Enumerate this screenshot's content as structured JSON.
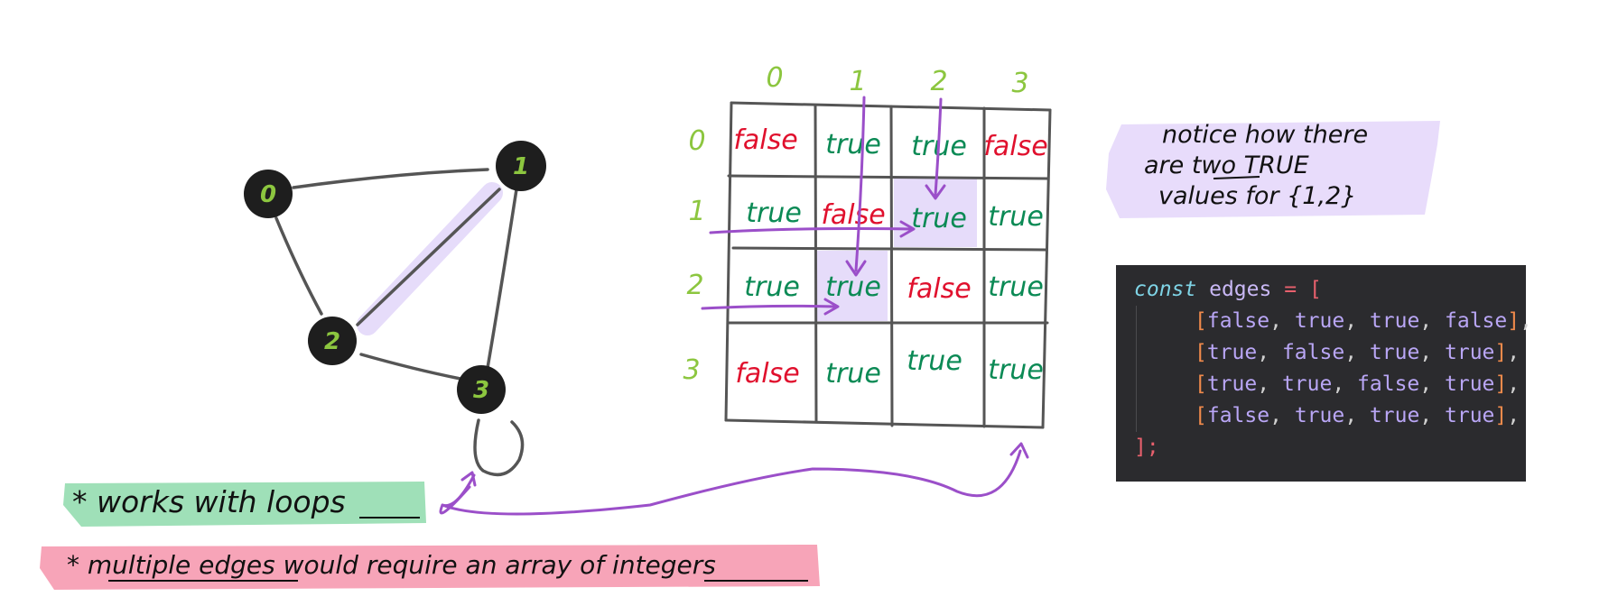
{
  "colors": {
    "node_fill": "#1e1e1e",
    "node_label": "#8cc63f",
    "edge": "#555555",
    "highlight": "#e6dcfa",
    "true_text": "#0b8a55",
    "false_text": "#e0102d",
    "index_label": "#8cc63f",
    "arrow": "#9b4fc9",
    "note_bg": "#e8dcfb",
    "green_note_bg": "#9fe0b8",
    "pink_note_bg": "#f7a4b8",
    "code_bg": "#2b2b2e",
    "code_keyword": "#7fd4e6",
    "code_bracket": "#f08a4b",
    "code_value": "#b9a6f5",
    "code_name": "#c9b8f5",
    "code_punct": "#d0d0d0",
    "code_close": "#e8606d"
  },
  "graph": {
    "nodes": [
      {
        "id": "n0",
        "label": "0"
      },
      {
        "id": "n1",
        "label": "1"
      },
      {
        "id": "n2",
        "label": "2"
      },
      {
        "id": "n3",
        "label": "3"
      }
    ],
    "edges": [
      [
        "0",
        "1"
      ],
      [
        "0",
        "2"
      ],
      [
        "1",
        "2"
      ],
      [
        "1",
        "3"
      ],
      [
        "2",
        "3"
      ],
      [
        "3",
        "3"
      ]
    ],
    "highlighted_edge": [
      "1",
      "2"
    ]
  },
  "matrix": {
    "col_labels": [
      "0",
      "1",
      "2",
      "3"
    ],
    "row_labels": [
      "0",
      "1",
      "2",
      "3"
    ],
    "rows": [
      [
        "false",
        "true",
        "true",
        "false"
      ],
      [
        "true",
        "false",
        "true",
        "true"
      ],
      [
        "true",
        "true",
        "false",
        "true"
      ],
      [
        "false",
        "true",
        "true",
        "true"
      ]
    ],
    "highlighted_cells": [
      [
        1,
        2
      ],
      [
        2,
        1
      ]
    ]
  },
  "notes": {
    "notice": [
      "notice how there",
      "are two TRUE",
      "values for {1,2}"
    ],
    "loops": "* works with loops",
    "multiple_edges": "* multiple edges would require an array of integers"
  },
  "code": {
    "keyword": "const",
    "name": "edges",
    "equals": "=",
    "open": "[",
    "close": "];",
    "rows": [
      [
        "false",
        "true",
        "true",
        "false"
      ],
      [
        "true",
        "false",
        "true",
        "true"
      ],
      [
        "true",
        "true",
        "false",
        "true"
      ],
      [
        "false",
        "true",
        "true",
        "true"
      ]
    ]
  }
}
